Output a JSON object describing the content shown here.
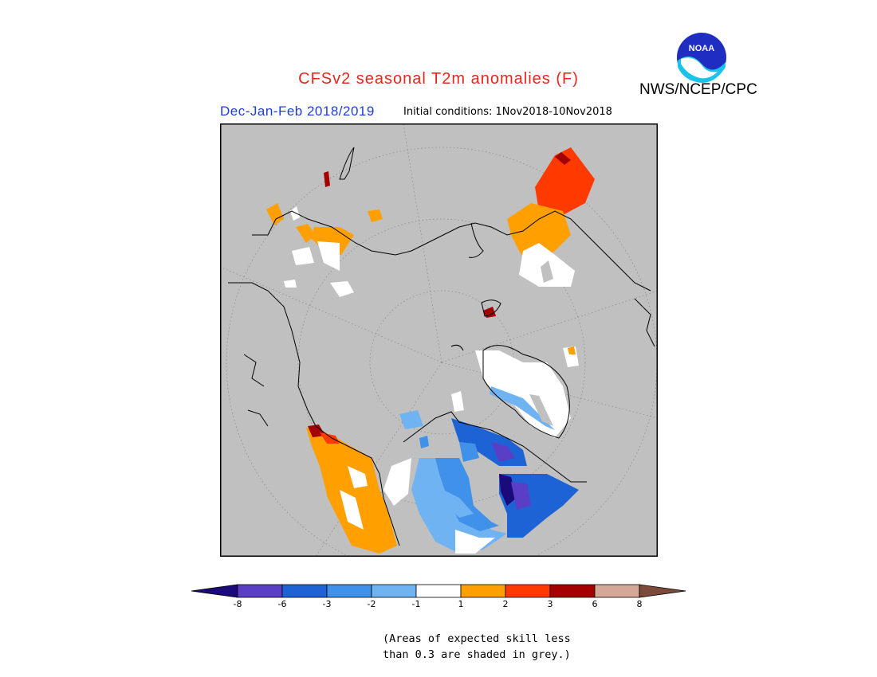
{
  "header": {
    "title": "CFSv2 seasonal T2m anomalies (F)",
    "org": "NWS/NCEP/CPC",
    "season": "Dec-Jan-Feb 2018/2019",
    "initial_conditions": "Initial conditions: 1Nov2018-10Nov2018",
    "logo_text": "NOAA"
  },
  "colors": {
    "title": "#e8261b",
    "season": "#1f3ddb",
    "land_grey": "#c0c0c0",
    "scale": [
      "#1a0a7a",
      "#5a3ec6",
      "#1d63d6",
      "#3f91ea",
      "#6fb3f2",
      "#ffffff",
      "#ff9f00",
      "#ff3a00",
      "#a50000",
      "#d4a896",
      "#7b4a3a"
    ]
  },
  "legend": {
    "labels": [
      "-8",
      "-6",
      "-3",
      "-2",
      "-1",
      "1",
      "2",
      "3",
      "6",
      "8"
    ]
  },
  "footnote": {
    "line1": "(Areas of expected skill less",
    "line2": "than 0.3 are shaded in grey.)"
  }
}
